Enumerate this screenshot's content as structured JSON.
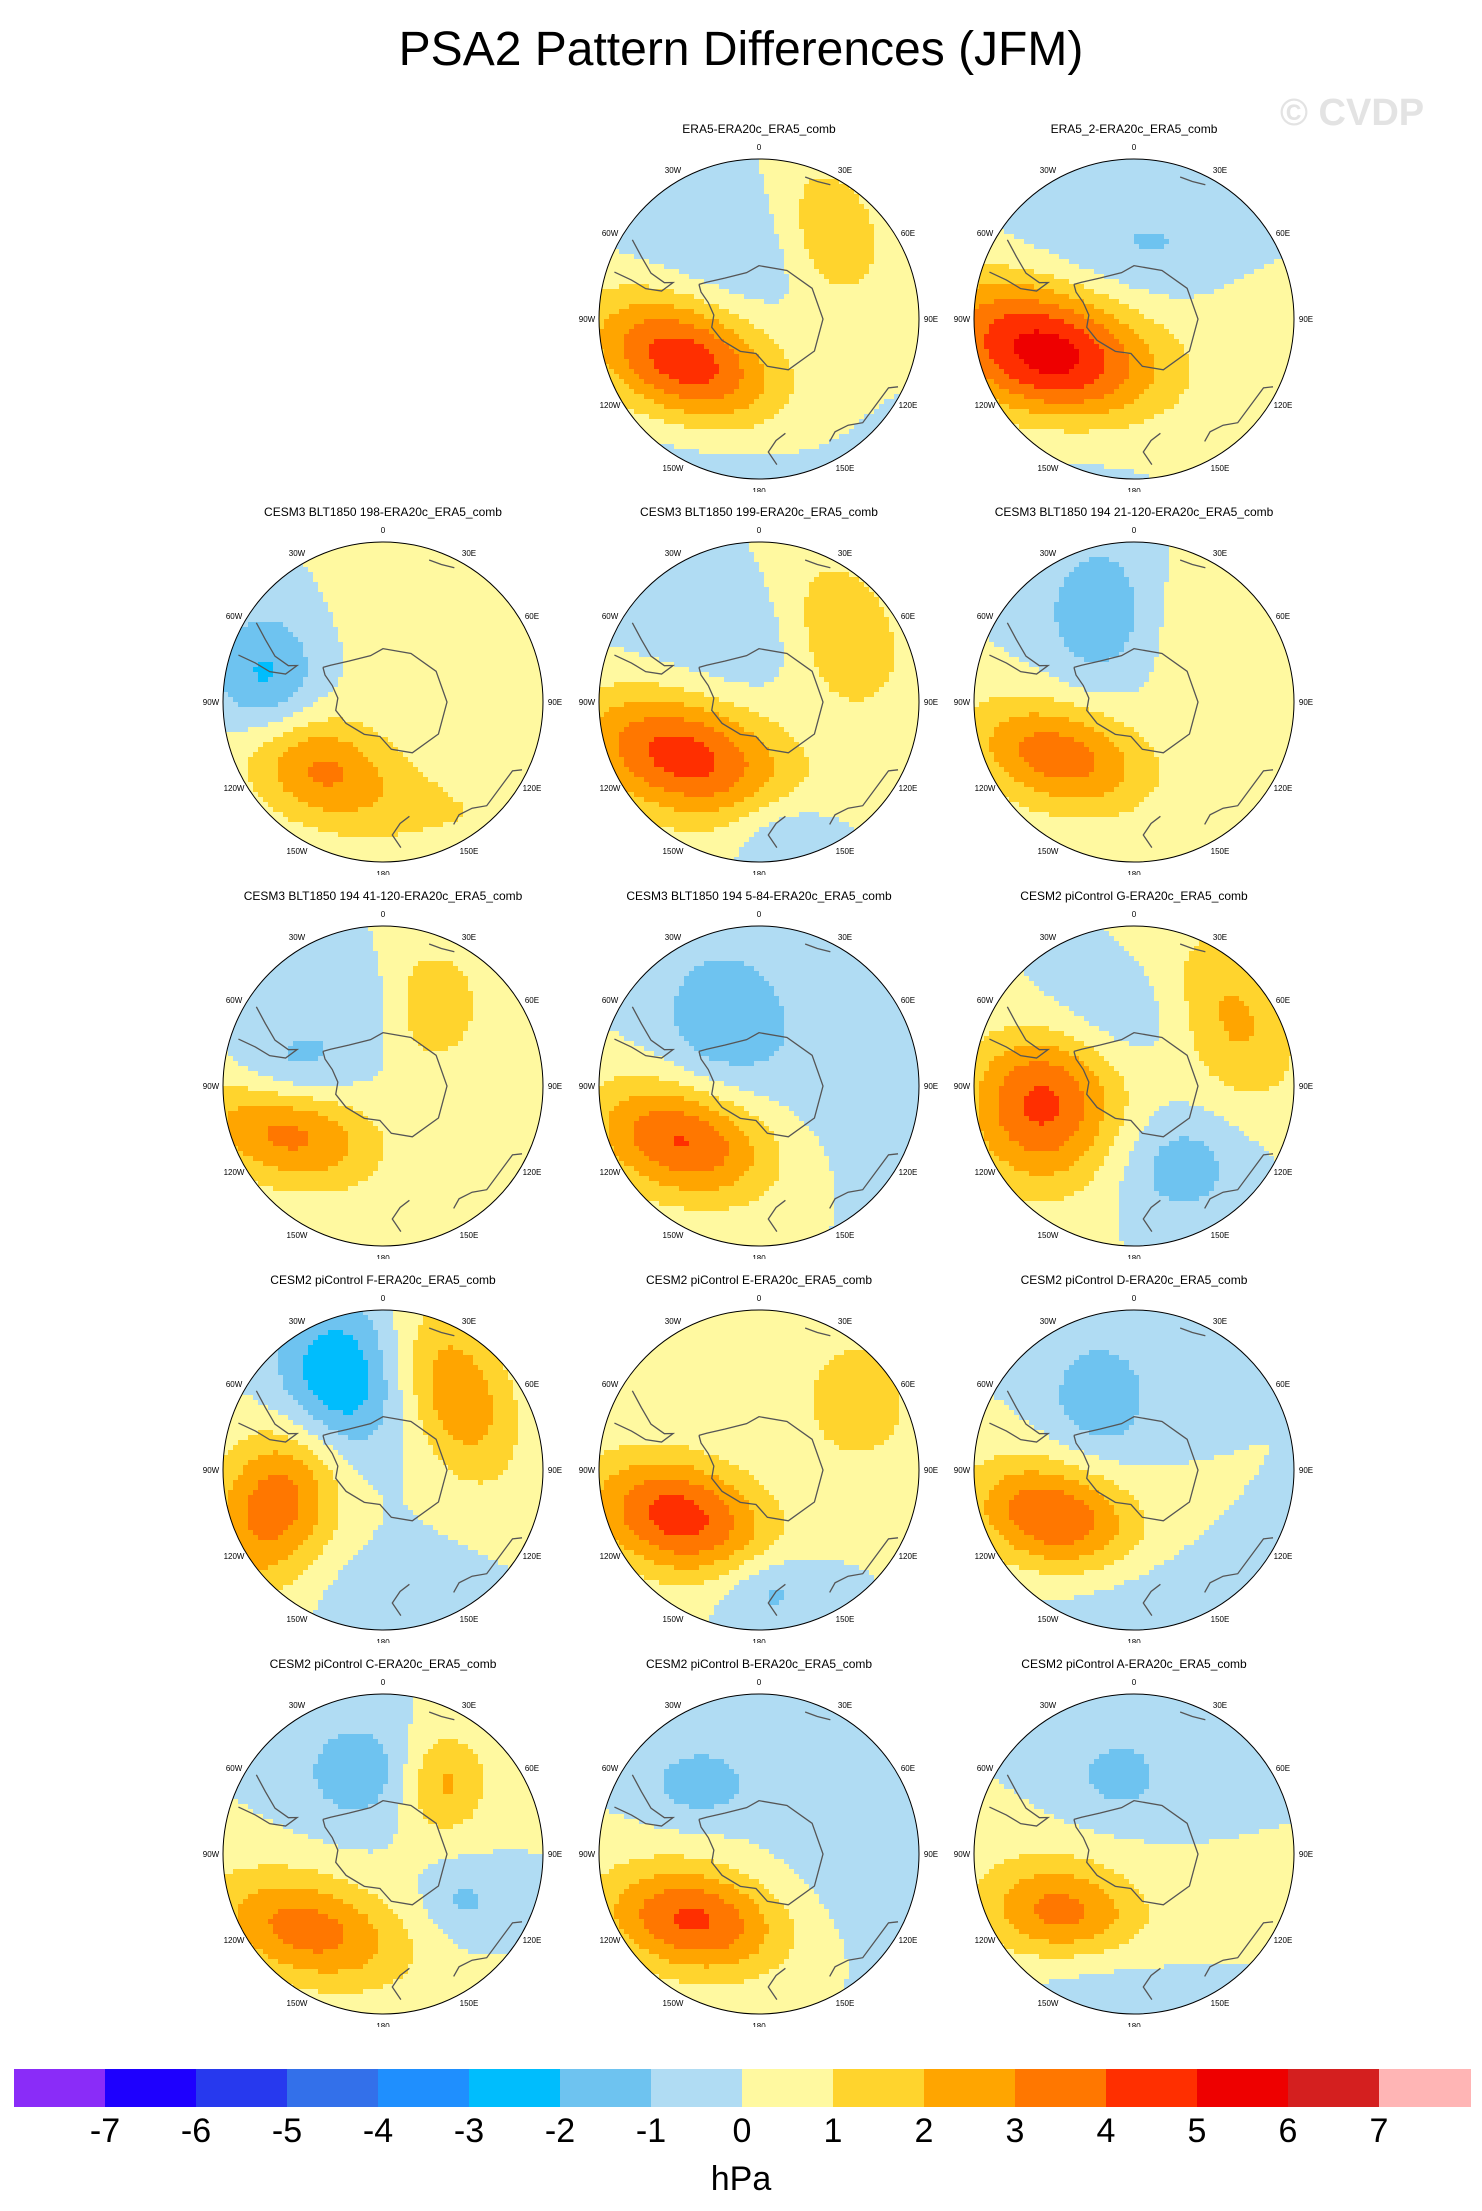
{
  "title": "PSA2 Pattern Differences (JFM)",
  "watermark": "© CVDP",
  "units": "hPa",
  "colorbar": {
    "ticks": [
      "-7",
      "-6",
      "-5",
      "-4",
      "-3",
      "-2",
      "-1",
      "0",
      "1",
      "2",
      "3",
      "4",
      "5",
      "6",
      "7"
    ],
    "colors": [
      "#8a2cf8",
      "#1e00fe",
      "#2739ee",
      "#3370ea",
      "#1f8ffe",
      "#00bdfd",
      "#6ec3f0",
      "#b0dcf3",
      "#fff9a0",
      "#ffd42d",
      "#ffa500",
      "#ff7700",
      "#ff2f00",
      "#ee0000",
      "#d41f1f",
      "#ffb5b5"
    ]
  },
  "map_labels": {
    "lon": [
      "0",
      "30E",
      "60E",
      "90E",
      "120E",
      "150E",
      "180",
      "150W",
      "120W",
      "90W",
      "60W",
      "30W"
    ]
  },
  "panels": [
    {
      "title": "ERA5-ERA20c_ERA5_comb",
      "blobs": [
        {
          "lat": -58,
          "lon": -120,
          "amp": 4.8,
          "sx": 26,
          "sy": 16,
          "rot": 25
        },
        {
          "lat": -48,
          "lon": 40,
          "amp": 2.2,
          "sx": 14,
          "sy": 20,
          "rot": -20
        },
        {
          "lat": -62,
          "lon": -20,
          "amp": -1.0,
          "sx": 30,
          "sy": 20,
          "rot": 0
        },
        {
          "lat": -40,
          "lon": -160,
          "amp": -0.8,
          "sx": 30,
          "sy": 16,
          "rot": 0
        }
      ]
    },
    {
      "title": "ERA5_2-ERA20c_ERA5_comb",
      "blobs": [
        {
          "lat": -55,
          "lon": -112,
          "amp": 5.6,
          "sx": 30,
          "sy": 18,
          "rot": 20
        },
        {
          "lat": -62,
          "lon": 20,
          "amp": -1.2,
          "sx": 40,
          "sy": 16,
          "rot": 0
        },
        {
          "lat": -45,
          "lon": -160,
          "amp": -0.9,
          "sx": 26,
          "sy": 14,
          "rot": 0
        },
        {
          "lat": -40,
          "lon": 80,
          "amp": 0.8,
          "sx": 24,
          "sy": 20,
          "rot": 0
        }
      ]
    },
    {
      "title": "CESM3 BLT1850 198-ERA20c_ERA5_comb",
      "blobs": [
        {
          "lat": -55,
          "lon": -135,
          "amp": 3.2,
          "sx": 22,
          "sy": 14,
          "rot": 20
        },
        {
          "lat": -45,
          "lon": -80,
          "amp": -2.3,
          "sx": 14,
          "sy": 18,
          "rot": 0
        },
        {
          "lat": -45,
          "lon": 40,
          "amp": 1.0,
          "sx": 26,
          "sy": 26,
          "rot": 0
        },
        {
          "lat": -35,
          "lon": 140,
          "amp": 0.9,
          "sx": 30,
          "sy": 16,
          "rot": 0
        }
      ]
    },
    {
      "title": "CESM3 BLT1850 199-ERA20c_ERA5_comb",
      "blobs": [
        {
          "lat": -55,
          "lon": -125,
          "amp": 4.5,
          "sx": 28,
          "sy": 16,
          "rot": 15
        },
        {
          "lat": -50,
          "lon": 50,
          "amp": 2.3,
          "sx": 16,
          "sy": 22,
          "rot": -25
        },
        {
          "lat": -40,
          "lon": 170,
          "amp": -1.2,
          "sx": 14,
          "sy": 10,
          "rot": 0
        },
        {
          "lat": -65,
          "lon": -10,
          "amp": -1.0,
          "sx": 30,
          "sy": 18,
          "rot": 0
        }
      ]
    },
    {
      "title": "CESM3 BLT1850 194 21-120-ERA20c_ERA5_comb",
      "blobs": [
        {
          "lat": -55,
          "lon": -125,
          "amp": 3.6,
          "sx": 24,
          "sy": 14,
          "rot": 15
        },
        {
          "lat": -55,
          "lon": -20,
          "amp": -1.9,
          "sx": 16,
          "sy": 20,
          "rot": 0
        },
        {
          "lat": -50,
          "lon": 50,
          "amp": 1.0,
          "sx": 24,
          "sy": 22,
          "rot": 0
        }
      ]
    },
    {
      "title": "CESM3 BLT1850 194 41-120-ERA20c_ERA5_comb",
      "blobs": [
        {
          "lat": -50,
          "lon": -115,
          "amp": 3.4,
          "sx": 24,
          "sy": 14,
          "rot": 15
        },
        {
          "lat": -55,
          "lon": 30,
          "amp": 2.0,
          "sx": 14,
          "sy": 16,
          "rot": 0
        },
        {
          "lat": -55,
          "lon": -80,
          "amp": -1.6,
          "sx": 16,
          "sy": 12,
          "rot": 0
        },
        {
          "lat": -60,
          "lon": -10,
          "amp": -1.0,
          "sx": 14,
          "sy": 14,
          "rot": 0
        }
      ]
    },
    {
      "title": "CESM3 BLT1850 194 5-84-ERA20c_ERA5_comb",
      "blobs": [
        {
          "lat": -55,
          "lon": -125,
          "amp": 4.2,
          "sx": 24,
          "sy": 15,
          "rot": 15
        },
        {
          "lat": -62,
          "lon": -30,
          "amp": -1.7,
          "sx": 18,
          "sy": 22,
          "rot": 0
        },
        {
          "lat": -40,
          "lon": 80,
          "amp": -0.8,
          "sx": 30,
          "sy": 30,
          "rot": 0
        }
      ]
    },
    {
      "title": "CESM2 piControl G-ERA20c_ERA5_comb",
      "blobs": [
        {
          "lat": -55,
          "lon": -100,
          "amp": 4.3,
          "sx": 20,
          "sy": 22,
          "rot": 0
        },
        {
          "lat": -45,
          "lon": 55,
          "amp": 2.3,
          "sx": 16,
          "sy": 24,
          "rot": -25
        },
        {
          "lat": -55,
          "lon": 150,
          "amp": -1.6,
          "sx": 16,
          "sy": 14,
          "rot": 0
        },
        {
          "lat": -60,
          "lon": -30,
          "amp": -1.2,
          "sx": 26,
          "sy": 14,
          "rot": 0
        }
      ]
    },
    {
      "title": "CESM2 piControl F-ERA20c_ERA5_comb",
      "blobs": [
        {
          "lat": -50,
          "lon": -105,
          "amp": 3.8,
          "sx": 16,
          "sy": 26,
          "rot": 30
        },
        {
          "lat": -50,
          "lon": 45,
          "amp": 2.8,
          "sx": 14,
          "sy": 24,
          "rot": -20
        },
        {
          "lat": -55,
          "lon": -30,
          "amp": -3.5,
          "sx": 16,
          "sy": 22,
          "rot": 0
        },
        {
          "lat": -40,
          "lon": 175,
          "amp": -0.8,
          "sx": 20,
          "sy": 14,
          "rot": 0
        }
      ]
    },
    {
      "title": "CESM2 piControl E-ERA20c_ERA5_comb",
      "blobs": [
        {
          "lat": -55,
          "lon": -120,
          "amp": 4.5,
          "sx": 24,
          "sy": 15,
          "rot": 15
        },
        {
          "lat": -45,
          "lon": 55,
          "amp": 2.0,
          "sx": 14,
          "sy": 16,
          "rot": 0
        },
        {
          "lat": -45,
          "lon": 175,
          "amp": -1.5,
          "sx": 14,
          "sy": 10,
          "rot": 0
        }
      ]
    },
    {
      "title": "CESM2 piControl D-ERA20c_ERA5_comb",
      "blobs": [
        {
          "lat": -55,
          "lon": -120,
          "amp": 4.0,
          "sx": 22,
          "sy": 14,
          "rot": 15
        },
        {
          "lat": -60,
          "lon": -25,
          "amp": -1.8,
          "sx": 14,
          "sy": 16,
          "rot": 0
        },
        {
          "lat": -40,
          "lon": 170,
          "amp": -0.8,
          "sx": 30,
          "sy": 14,
          "rot": 0
        }
      ]
    },
    {
      "title": "CESM2 piControl C-ERA20c_ERA5_comb",
      "blobs": [
        {
          "lat": -50,
          "lon": -135,
          "amp": 3.5,
          "sx": 26,
          "sy": 14,
          "rot": 15
        },
        {
          "lat": -55,
          "lon": 40,
          "amp": 2.3,
          "sx": 12,
          "sy": 14,
          "rot": 0
        },
        {
          "lat": -58,
          "lon": -15,
          "amp": -1.8,
          "sx": 16,
          "sy": 14,
          "rot": 0
        },
        {
          "lat": -55,
          "lon": 120,
          "amp": -1.2,
          "sx": 10,
          "sy": 10,
          "rot": 0
        }
      ]
    },
    {
      "title": "CESM2 piControl B-ERA20c_ERA5_comb",
      "blobs": [
        {
          "lat": -55,
          "lon": -135,
          "amp": 4.2,
          "sx": 24,
          "sy": 14,
          "rot": 10
        },
        {
          "lat": -55,
          "lon": -40,
          "amp": -1.6,
          "sx": 14,
          "sy": 10,
          "rot": 0
        },
        {
          "lat": -40,
          "lon": 80,
          "amp": -0.8,
          "sx": 30,
          "sy": 30,
          "rot": 0
        }
      ]
    },
    {
      "title": "CESM2 piControl A-ERA20c_ERA5_comb",
      "blobs": [
        {
          "lat": -55,
          "lon": -130,
          "amp": 3.5,
          "sx": 22,
          "sy": 14,
          "rot": 10
        },
        {
          "lat": -60,
          "lon": -10,
          "amp": -1.4,
          "sx": 14,
          "sy": 12,
          "rot": 0
        },
        {
          "lat": -45,
          "lon": -160,
          "amp": -1.0,
          "sx": 20,
          "sy": 12,
          "rot": 0
        }
      ]
    }
  ]
}
